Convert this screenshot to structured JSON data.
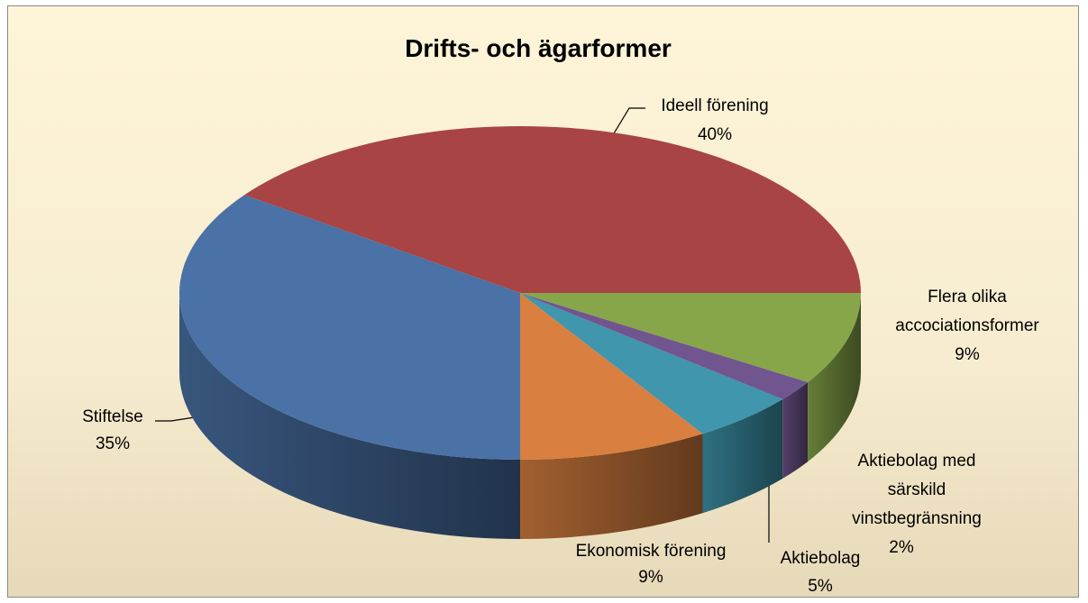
{
  "chart_data": {
    "type": "pie",
    "title": "Drifts- och ägarformer",
    "categories": [
      "Ideell förening",
      "Stiftelse",
      "Ekonomisk förening",
      "Aktiebolag",
      "Aktiebolag med särskild vinstbegränsning",
      "Flera olika accociationsformer"
    ],
    "values": [
      40,
      35,
      9,
      5,
      2,
      9
    ],
    "value_labels": [
      "40%",
      "35%",
      "9%",
      "5%",
      "2%",
      "9%"
    ],
    "colors": [
      "#a84444",
      "#4a72a6",
      "#d98040",
      "#3f96ad",
      "#71558f",
      "#87a64a"
    ]
  }
}
